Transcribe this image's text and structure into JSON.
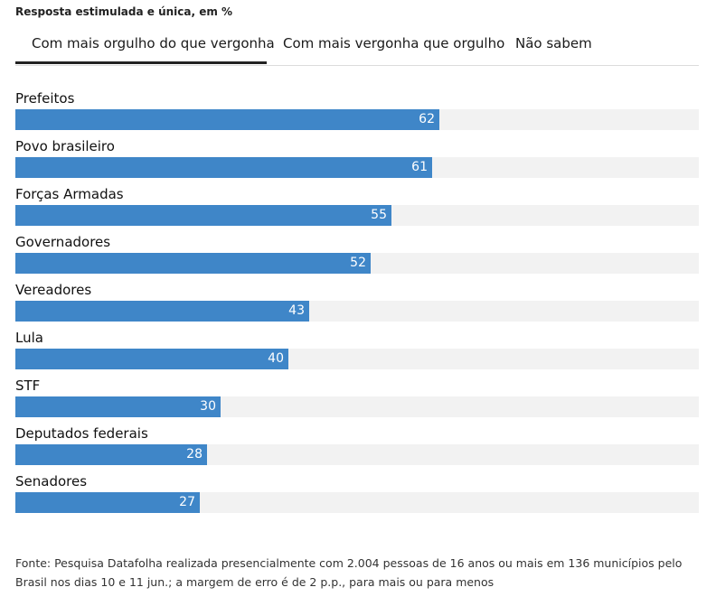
{
  "subtitle": "Resposta estimulada e única, em %",
  "tabs": [
    {
      "label": "Com mais orgulho do que vergonha",
      "active": true
    },
    {
      "label": "Com mais vergonha que orgulho",
      "active": false
    },
    {
      "label": "Não sabem",
      "active": false
    }
  ],
  "colors": {
    "bar": "#3f86c8",
    "track": "#f2f2f2"
  },
  "chart_data": {
    "type": "bar",
    "orientation": "horizontal",
    "categories": [
      "Prefeitos",
      "Povo brasileiro",
      "Forças Armadas",
      "Governadores",
      "Vereadores",
      "Lula",
      "STF",
      "Deputados federais",
      "Senadores"
    ],
    "values": [
      62,
      61,
      55,
      52,
      43,
      40,
      30,
      28,
      27
    ],
    "xlim": [
      0,
      100
    ],
    "grid": false
  },
  "source": "Fonte: Pesquisa Datafolha realizada presencialmente com 2.004 pessoas de 16 anos ou mais em 136 municípios pelo Brasil nos dias 10 e 11 jun.; a margem de erro é de 2 p.p., para mais ou para menos"
}
